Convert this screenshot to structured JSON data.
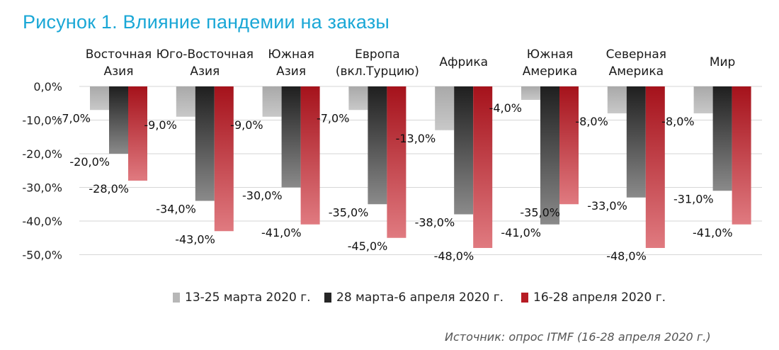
{
  "title": "Рисунок 1. Влияние пандемии на заказы",
  "source": "Источник: опрос ITMF (16-28 апреля 2020 г.)",
  "colors": {
    "title": "#1aa7d6",
    "series1": "#b7b7b7",
    "series2": "#262626",
    "series3": "#b71c24"
  },
  "chart_data": {
    "type": "bar",
    "title": "Рисунок 1. Влияние пандемии на заказы",
    "categories": [
      [
        "Восточная",
        "Азия"
      ],
      [
        "Юго-Восточная",
        "Азия"
      ],
      [
        "Южная",
        "Азия"
      ],
      [
        "Европа",
        "(вкл.Турцию)"
      ],
      [
        "Африка"
      ],
      [
        "Южная",
        "Америка"
      ],
      [
        "Северная",
        "Америка"
      ],
      [
        "Мир"
      ]
    ],
    "series": [
      {
        "name": "13-25 марта 2020 г.",
        "values": [
          -7,
          -9,
          -9,
          -7,
          -13,
          -4,
          -8,
          -8
        ],
        "labels": [
          "-7,0%",
          "-9,0%",
          "-9,0%",
          "-7,0%",
          "-13,0%",
          "-4,0%",
          "-8,0%",
          "-8,0%"
        ]
      },
      {
        "name": "28 марта-6 апреля 2020 г.",
        "values": [
          -20,
          -34,
          -30,
          -35,
          -38,
          -41,
          -33,
          -31
        ],
        "labels": [
          "-20,0%",
          "-34,0%",
          "-30,0%",
          "-35,0%",
          "-38,0%",
          "-41,0%",
          "-33,0%",
          "-31,0%"
        ]
      },
      {
        "name": "16-28 апреля 2020 г.",
        "values": [
          -28,
          -43,
          -41,
          -45,
          -48,
          -35,
          -48,
          -41
        ],
        "labels": [
          "-28,0%",
          "-43,0%",
          "-41,0%",
          "-45,0%",
          "-48,0%",
          "-35,0%",
          "-48,0%",
          "-41,0%"
        ]
      }
    ],
    "y_ticks": [
      "0,0%",
      "-10,0%",
      "-20,0%",
      "-30,0%",
      "-40,0%",
      "-50,0%"
    ],
    "ylim": [
      -50,
      0
    ],
    "grid": true,
    "legend_position": "bottom"
  }
}
